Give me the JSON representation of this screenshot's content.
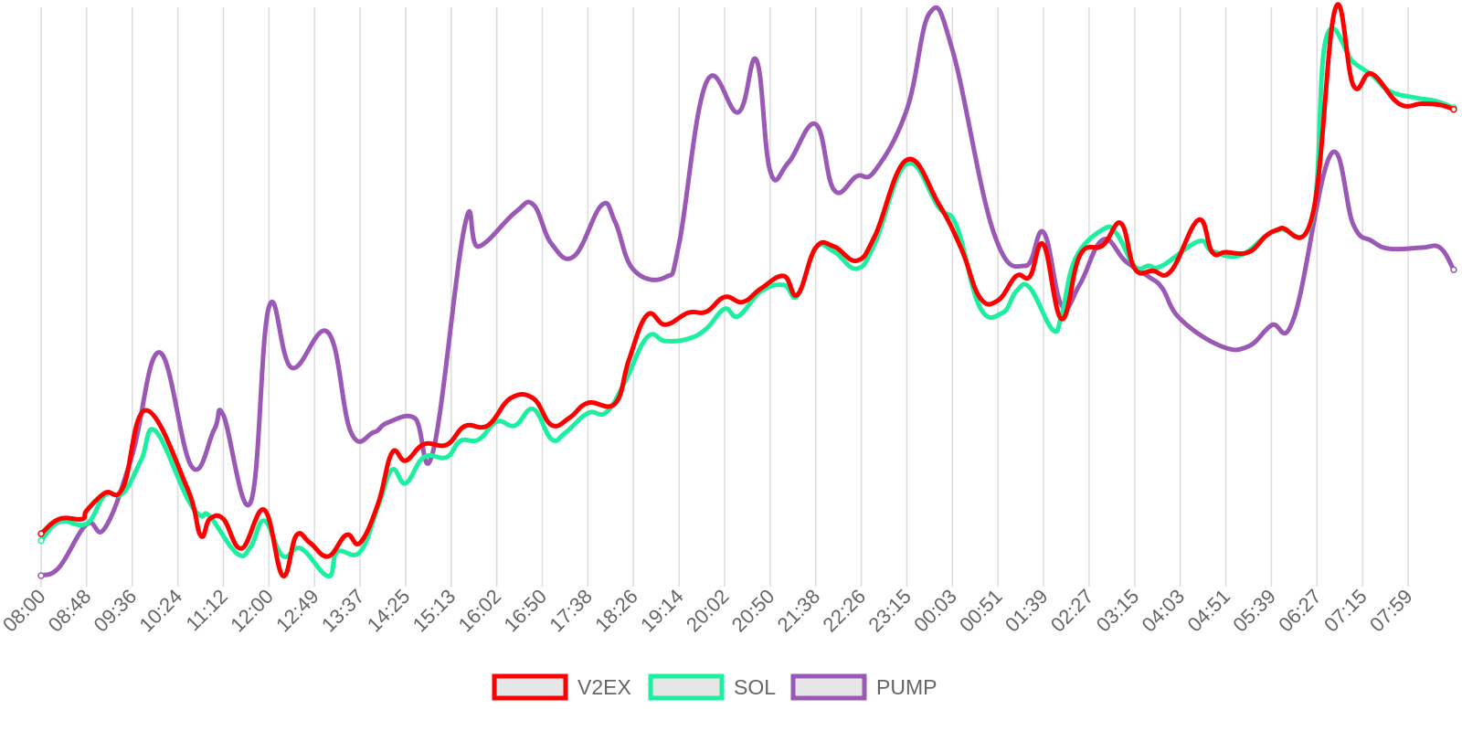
{
  "chart_data": {
    "type": "line",
    "title": "",
    "xlabel": "",
    "ylabel": "",
    "grid": {
      "vertical": true,
      "horizontal": false
    },
    "legend_position": "bottom",
    "ylim": [
      0,
      100
    ],
    "x_tick_labels": [
      "08:00",
      "08:48",
      "09:36",
      "10:24",
      "11:12",
      "12:00",
      "12:49",
      "13:37",
      "14:25",
      "15:13",
      "16:02",
      "16:50",
      "17:38",
      "18:26",
      "19:14",
      "20:02",
      "20:50",
      "21:38",
      "22:26",
      "23:15",
      "00:03",
      "00:51",
      "01:39",
      "02:27",
      "03:15",
      "04:03",
      "04:51",
      "05:39",
      "06:27",
      "07:15",
      "07:59"
    ],
    "series": [
      {
        "name": "V2EX",
        "color": "#ff0000",
        "points": [
          [
            0,
            7.4
          ],
          [
            0.4,
            10
          ],
          [
            0.9,
            10
          ],
          [
            1,
            11.5
          ],
          [
            1.4,
            14.6
          ],
          [
            1.8,
            15.6
          ],
          [
            2.3,
            29.2
          ],
          [
            3.2,
            15.6
          ],
          [
            3.5,
            7.1
          ],
          [
            3.7,
            10
          ],
          [
            4,
            10
          ],
          [
            4.4,
            4.8
          ],
          [
            4.9,
            11.6
          ],
          [
            5.3,
            0
          ],
          [
            5.6,
            7.1
          ],
          [
            5.9,
            5.8
          ],
          [
            6.3,
            3.4
          ],
          [
            6.7,
            7.2
          ],
          [
            7,
            5.8
          ],
          [
            7.4,
            12.8
          ],
          [
            7.7,
            21.7
          ],
          [
            8,
            20.3
          ],
          [
            8.4,
            23.2
          ],
          [
            8.9,
            23.1
          ],
          [
            9.3,
            26.4
          ],
          [
            9.8,
            26.5
          ],
          [
            10.3,
            31.3
          ],
          [
            10.8,
            31.3
          ],
          [
            11.2,
            26.6
          ],
          [
            11.6,
            27.9
          ],
          [
            12,
            30.5
          ],
          [
            12.6,
            30.4
          ],
          [
            12.9,
            38.1
          ],
          [
            13.3,
            46
          ],
          [
            13.7,
            44.3
          ],
          [
            14.2,
            46.4
          ],
          [
            14.6,
            46.6
          ],
          [
            15,
            49.2
          ],
          [
            15.4,
            48.3
          ],
          [
            15.8,
            50.7
          ],
          [
            16.3,
            52.9
          ],
          [
            16.6,
            49.6
          ],
          [
            17,
            57.9
          ],
          [
            17.4,
            58.1
          ],
          [
            17.9,
            55.6
          ],
          [
            18.3,
            60
          ],
          [
            19,
            73.4
          ],
          [
            19.7,
            65.6
          ],
          [
            20.2,
            57.6
          ],
          [
            20.6,
            49.1
          ],
          [
            21,
            48.6
          ],
          [
            21.4,
            52.9
          ],
          [
            21.7,
            52.8
          ],
          [
            22,
            58.4
          ],
          [
            22.4,
            45.3
          ],
          [
            22.8,
            56.6
          ],
          [
            23.3,
            58.3
          ],
          [
            23.7,
            62.2
          ],
          [
            24,
            54.2
          ],
          [
            24.4,
            53.8
          ],
          [
            24.8,
            53.8
          ],
          [
            25.4,
            62.8
          ],
          [
            25.7,
            57.1
          ],
          [
            26,
            57.1
          ],
          [
            26.5,
            57.1
          ],
          [
            26.9,
            60.1
          ],
          [
            27.2,
            61.3
          ],
          [
            27.9,
            63.6
          ],
          [
            28.4,
            100
          ],
          [
            28.8,
            86.5
          ],
          [
            29.2,
            88.6
          ],
          [
            29.8,
            83.3
          ],
          [
            30.3,
            83.3
          ],
          [
            30.7,
            83.1
          ],
          [
            31,
            82.3
          ]
        ]
      },
      {
        "name": "SOL",
        "color": "#1cf0a0",
        "points": [
          [
            0,
            6.2
          ],
          [
            0.4,
            9.5
          ],
          [
            1,
            9.2
          ],
          [
            1.4,
            14.2
          ],
          [
            1.8,
            14.6
          ],
          [
            2.2,
            20.5
          ],
          [
            2.5,
            25.6
          ],
          [
            3.2,
            13.8
          ],
          [
            3.5,
            10.6
          ],
          [
            3.7,
            10.5
          ],
          [
            4.3,
            3.9
          ],
          [
            4.6,
            5.1
          ],
          [
            4.9,
            9.7
          ],
          [
            5.3,
            3.5
          ],
          [
            5.7,
            4.8
          ],
          [
            6.3,
            -0.1
          ],
          [
            6.5,
            4.2
          ],
          [
            7,
            4.2
          ],
          [
            7.4,
            12.3
          ],
          [
            7.7,
            18.7
          ],
          [
            8,
            16.3
          ],
          [
            8.4,
            20.9
          ],
          [
            8.9,
            20.9
          ],
          [
            9.2,
            23.8
          ],
          [
            9.6,
            24
          ],
          [
            10,
            27.2
          ],
          [
            10.4,
            26.5
          ],
          [
            10.8,
            29.4
          ],
          [
            11.2,
            24.1
          ],
          [
            11.5,
            25.2
          ],
          [
            12,
            28.7
          ],
          [
            12.4,
            28.8
          ],
          [
            12.8,
            34
          ],
          [
            13.3,
            42.1
          ],
          [
            13.7,
            41.4
          ],
          [
            14.2,
            41.8
          ],
          [
            14.6,
            43.6
          ],
          [
            15,
            47.1
          ],
          [
            15.3,
            45.8
          ],
          [
            15.8,
            50.2
          ],
          [
            16.3,
            51.3
          ],
          [
            16.6,
            49.4
          ],
          [
            17,
            57.8
          ],
          [
            17.4,
            57.2
          ],
          [
            17.9,
            54.2
          ],
          [
            18.3,
            58.7
          ],
          [
            19,
            72.7
          ],
          [
            19.7,
            65
          ],
          [
            20.1,
            61.6
          ],
          [
            20.6,
            47.4
          ],
          [
            21.1,
            46.4
          ],
          [
            21.4,
            50.2
          ],
          [
            21.7,
            50.8
          ],
          [
            22.2,
            43.4
          ],
          [
            22.4,
            46.1
          ],
          [
            22.7,
            56
          ],
          [
            23.3,
            61.1
          ],
          [
            23.6,
            60.4
          ],
          [
            24,
            54.6
          ],
          [
            24.3,
            54.7
          ],
          [
            24.6,
            54.7
          ],
          [
            25.4,
            59
          ],
          [
            25.7,
            57.3
          ],
          [
            26.3,
            56.5
          ],
          [
            26.9,
            60.1
          ],
          [
            27.2,
            61.1
          ],
          [
            27.9,
            63.2
          ],
          [
            28.2,
            94.8
          ],
          [
            28.8,
            90.6
          ],
          [
            29.2,
            88.4
          ],
          [
            29.6,
            85.5
          ],
          [
            30.2,
            84.3
          ],
          [
            30.6,
            83.8
          ],
          [
            31,
            82.6
          ]
        ]
      },
      {
        "name": "PUMP",
        "color": "#9b59b6",
        "points": [
          [
            0,
            0
          ],
          [
            0.4,
            1.5
          ],
          [
            1,
            9.1
          ],
          [
            1.4,
            8.4
          ],
          [
            2,
            21.3
          ],
          [
            2.6,
            39.4
          ],
          [
            3.3,
            19.3
          ],
          [
            3.8,
            25.8
          ],
          [
            4,
            28.3
          ],
          [
            4.6,
            13
          ],
          [
            5,
            47.4
          ],
          [
            5.5,
            36.7
          ],
          [
            6.3,
            42.9
          ],
          [
            6.8,
            25.3
          ],
          [
            7.3,
            25.3
          ],
          [
            7.6,
            27
          ],
          [
            8.2,
            27.8
          ],
          [
            8.6,
            21.9
          ],
          [
            9.3,
            61.9
          ],
          [
            9.6,
            58.1
          ],
          [
            10.4,
            64.1
          ],
          [
            10.8,
            65.5
          ],
          [
            11.2,
            58.6
          ],
          [
            11.7,
            56.4
          ],
          [
            12.3,
            65.4
          ],
          [
            12.6,
            62.4
          ],
          [
            13,
            54
          ],
          [
            13.7,
            52.7
          ],
          [
            14,
            58.5
          ],
          [
            14.6,
            87.1
          ],
          [
            15.3,
            81.8
          ],
          [
            15.7,
            91
          ],
          [
            16,
            71.4
          ],
          [
            16.4,
            72.9
          ],
          [
            17,
            79.7
          ],
          [
            17.4,
            68.1
          ],
          [
            17.9,
            70.5
          ],
          [
            18.3,
            71.5
          ],
          [
            19,
            82.3
          ],
          [
            19.5,
            99.3
          ],
          [
            20,
            92.8
          ],
          [
            20.9,
            60.7
          ],
          [
            21.6,
            54.7
          ],
          [
            22,
            60.6
          ],
          [
            22.4,
            47.7
          ],
          [
            22.8,
            51.5
          ],
          [
            23.3,
            59.3
          ],
          [
            23.8,
            55.5
          ],
          [
            24.3,
            52.8
          ],
          [
            24.6,
            50.8
          ],
          [
            25,
            45.3
          ],
          [
            25.9,
            40.5
          ],
          [
            26.5,
            40.5
          ],
          [
            27,
            44.2
          ],
          [
            27.5,
            45.6
          ],
          [
            28.3,
            74.3
          ],
          [
            28.8,
            61.9
          ],
          [
            29.2,
            59.1
          ],
          [
            29.6,
            57.7
          ],
          [
            30.3,
            57.9
          ],
          [
            30.7,
            57.9
          ],
          [
            31,
            54
          ]
        ]
      }
    ]
  }
}
